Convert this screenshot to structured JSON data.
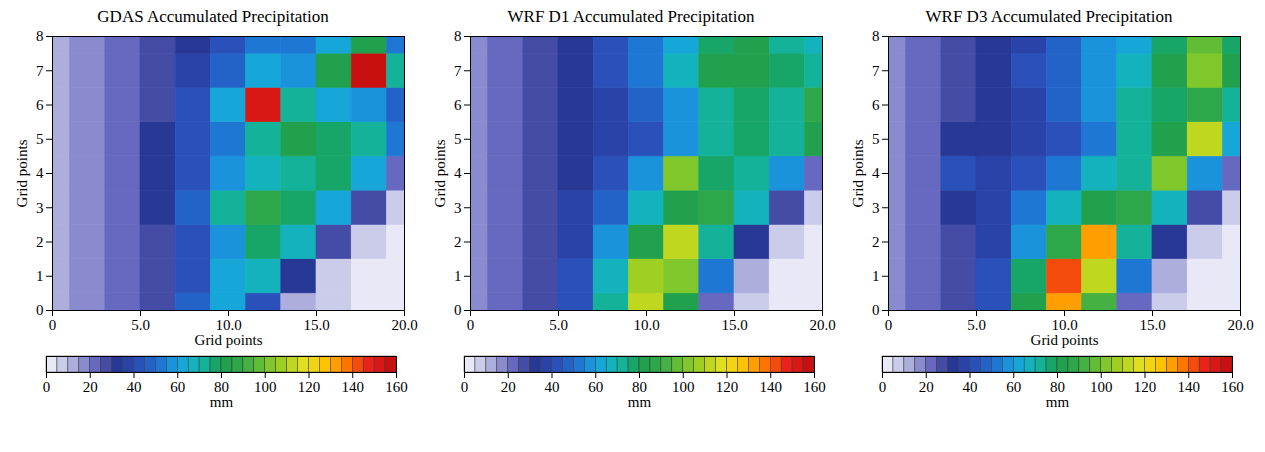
{
  "chart_data": [
    {
      "type": "heatmap",
      "title": "GDAS Accumulated Precipitation",
      "xlabel": "Grid points",
      "ylabel": "Grid points",
      "x": [
        0,
        2,
        4,
        6,
        8,
        10,
        12,
        14,
        16,
        18,
        20
      ],
      "y": [
        0,
        1,
        2,
        3,
        4,
        5,
        6,
        7,
        8
      ],
      "z": [
        [
          12,
          15,
          20,
          25,
          45,
          60,
          40,
          10,
          5,
          3,
          3
        ],
        [
          12,
          15,
          20,
          25,
          40,
          60,
          65,
          30,
          8,
          4,
          3
        ],
        [
          12,
          15,
          20,
          28,
          40,
          55,
          75,
          65,
          25,
          8,
          4
        ],
        [
          12,
          15,
          22,
          30,
          45,
          70,
          85,
          75,
          60,
          25,
          8
        ],
        [
          12,
          15,
          22,
          30,
          40,
          55,
          65,
          70,
          75,
          60,
          20
        ],
        [
          12,
          15,
          22,
          30,
          40,
          50,
          70,
          80,
          75,
          70,
          50
        ],
        [
          12,
          15,
          22,
          28,
          40,
          60,
          150,
          70,
          60,
          55,
          45
        ],
        [
          12,
          15,
          20,
          28,
          35,
          45,
          60,
          55,
          80,
          160,
          70
        ],
        [
          12,
          15,
          20,
          25,
          30,
          40,
          50,
          50,
          60,
          80,
          50
        ]
      ],
      "xlim": [
        0,
        20
      ],
      "ylim": [
        0,
        8
      ],
      "xticks": [
        0,
        {
          "value": 5,
          "label": "5.0"
        },
        {
          "value": 10,
          "label": "10.0"
        },
        {
          "value": 15,
          "label": "15.0"
        },
        {
          "value": 20,
          "label": "20.0"
        }
      ],
      "yticks": [
        0,
        1,
        2,
        3,
        4,
        5,
        6,
        7,
        8
      ],
      "colorbar_label": "mm",
      "colorbar_range": [
        0,
        160
      ],
      "colorbar_ticks": [
        0,
        20,
        40,
        60,
        80,
        100,
        120,
        140,
        160
      ]
    },
    {
      "type": "heatmap",
      "title": "WRF D1 Accumulated Precipitation",
      "ylabel": "Grid points",
      "x": [
        0,
        2,
        4,
        6,
        8,
        10,
        12,
        14,
        16,
        18,
        20
      ],
      "y": [
        0,
        1,
        2,
        3,
        4,
        5,
        6,
        7,
        8
      ],
      "z": [
        [
          15,
          20,
          25,
          40,
          70,
          110,
          80,
          20,
          5,
          3,
          3
        ],
        [
          15,
          20,
          25,
          40,
          65,
          105,
          100,
          50,
          10,
          4,
          3
        ],
        [
          15,
          20,
          25,
          35,
          55,
          80,
          110,
          70,
          30,
          8,
          4
        ],
        [
          15,
          20,
          25,
          35,
          45,
          65,
          80,
          85,
          65,
          25,
          8
        ],
        [
          15,
          20,
          25,
          30,
          40,
          55,
          100,
          75,
          70,
          55,
          20
        ],
        [
          15,
          20,
          25,
          30,
          35,
          40,
          55,
          70,
          75,
          70,
          80
        ],
        [
          15,
          20,
          25,
          30,
          35,
          45,
          55,
          70,
          75,
          70,
          85
        ],
        [
          15,
          20,
          25,
          30,
          40,
          50,
          65,
          80,
          80,
          75,
          70
        ],
        [
          15,
          20,
          25,
          30,
          40,
          50,
          60,
          75,
          80,
          70,
          65
        ]
      ],
      "xlim": [
        0,
        20
      ],
      "ylim": [
        0,
        8
      ],
      "xticks": [
        0,
        {
          "value": 5,
          "label": "5.0"
        },
        {
          "value": 10,
          "label": "10.0"
        },
        {
          "value": 15,
          "label": "15.0"
        },
        {
          "value": 20,
          "label": "20.0"
        }
      ],
      "yticks": [
        0,
        1,
        2,
        3,
        4,
        5,
        6,
        7,
        8
      ],
      "colorbar_label": "mm",
      "colorbar_range": [
        0,
        160
      ],
      "colorbar_ticks": [
        0,
        20,
        40,
        60,
        80,
        100,
        120,
        140,
        160
      ]
    },
    {
      "type": "heatmap",
      "title": "WRF D3 Accumulated Precipitation",
      "xlabel": "Grid points",
      "ylabel": "Grid points",
      "x": [
        0,
        2,
        4,
        6,
        8,
        10,
        12,
        14,
        16,
        18,
        20
      ],
      "y": [
        0,
        1,
        2,
        3,
        4,
        5,
        6,
        7,
        8
      ],
      "z": [
        [
          15,
          20,
          25,
          40,
          80,
          130,
          90,
          20,
          5,
          3,
          3
        ],
        [
          15,
          20,
          25,
          40,
          75,
          140,
          110,
          50,
          10,
          4,
          3
        ],
        [
          15,
          20,
          25,
          35,
          55,
          85,
          130,
          70,
          30,
          8,
          4
        ],
        [
          15,
          20,
          30,
          35,
          50,
          65,
          80,
          85,
          65,
          25,
          8
        ],
        [
          15,
          20,
          40,
          35,
          40,
          50,
          65,
          70,
          100,
          55,
          20
        ],
        [
          15,
          20,
          30,
          30,
          35,
          40,
          50,
          70,
          80,
          110,
          60
        ],
        [
          15,
          20,
          25,
          30,
          35,
          45,
          55,
          70,
          75,
          85,
          70
        ],
        [
          15,
          20,
          25,
          30,
          40,
          45,
          55,
          65,
          80,
          100,
          80
        ],
        [
          15,
          20,
          25,
          30,
          35,
          45,
          55,
          60,
          75,
          95,
          75
        ]
      ],
      "xlim": [
        0,
        20
      ],
      "ylim": [
        0,
        8
      ],
      "xticks": [
        0,
        {
          "value": 5,
          "label": "5.0"
        },
        {
          "value": 10,
          "label": "10.0"
        },
        {
          "value": 15,
          "label": "15.0"
        },
        {
          "value": 20,
          "label": "20.0"
        }
      ],
      "yticks": [
        0,
        1,
        2,
        3,
        4,
        5,
        6,
        7,
        8
      ],
      "colorbar_label": "mm",
      "colorbar_range": [
        0,
        160
      ],
      "colorbar_ticks": [
        0,
        20,
        40,
        60,
        80,
        100,
        120,
        140,
        160
      ]
    }
  ]
}
